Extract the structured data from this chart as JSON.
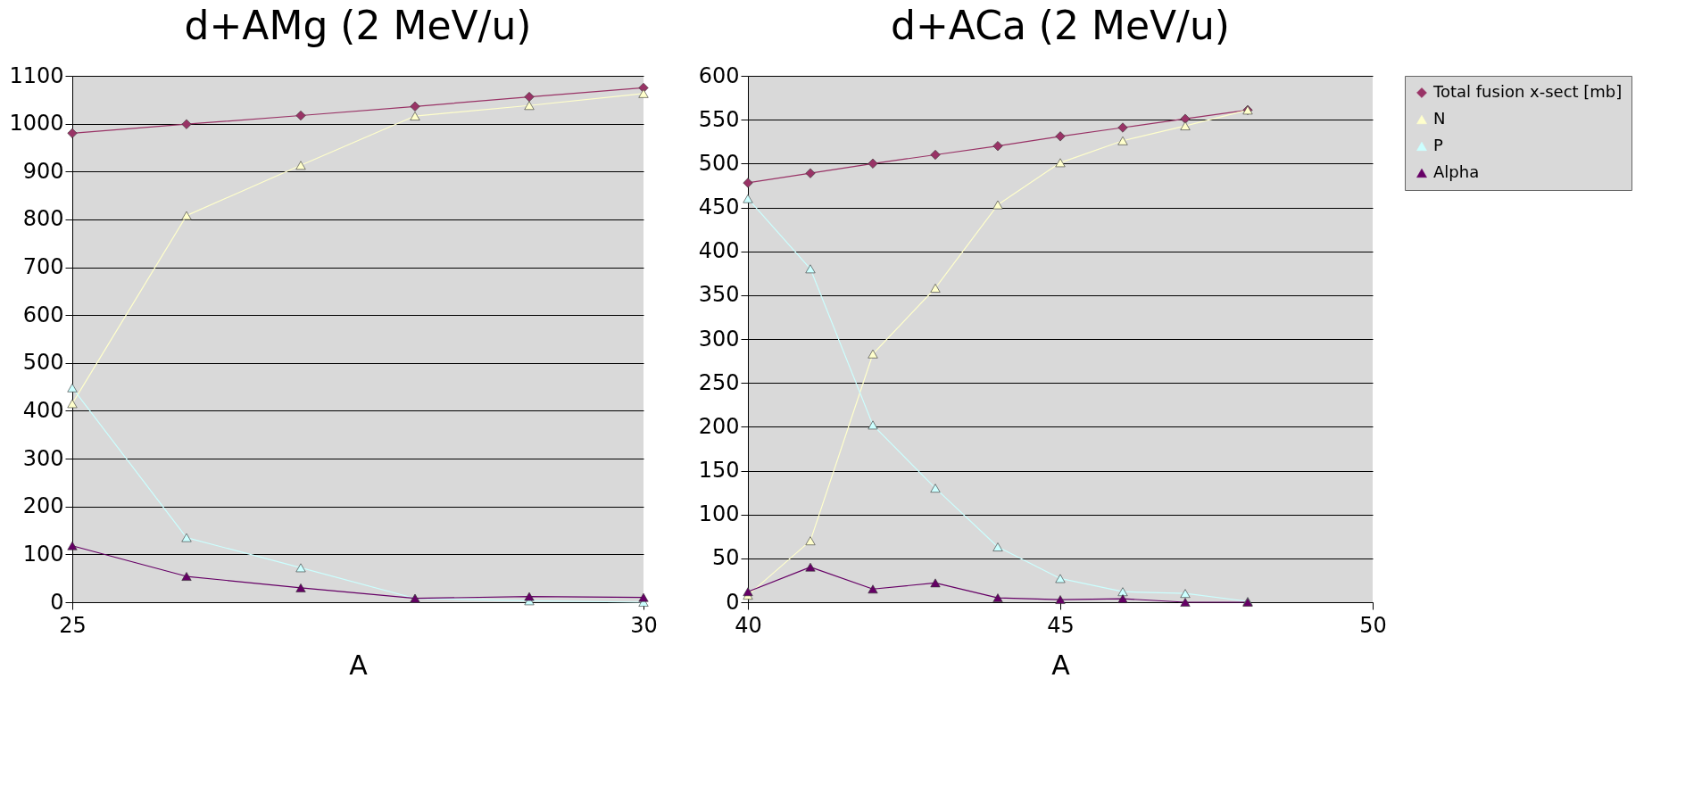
{
  "chart_data": [
    {
      "type": "line",
      "title": "d+AMg (2 MeV/u)",
      "xlabel": "A",
      "x": [
        25,
        26,
        27,
        28,
        29,
        30
      ],
      "xlim": [
        25,
        30
      ],
      "xticks": [
        25,
        30
      ],
      "ylim": [
        0,
        1100
      ],
      "yticks": [
        0,
        100,
        200,
        300,
        400,
        500,
        600,
        700,
        800,
        900,
        1000,
        1100
      ],
      "grid": "y",
      "legend": "right",
      "series": [
        {
          "name": "Total fusion x-sect [mb]",
          "color": "#993366",
          "marker": "diamond",
          "values": [
            980,
            999,
            1017,
            1036,
            1056,
            1075
          ]
        },
        {
          "name": "N",
          "color": "#ffffcc",
          "marker": "triangle",
          "values": [
            415,
            808,
            913,
            1016,
            1038,
            1063
          ]
        },
        {
          "name": "P",
          "color": "#ccffff",
          "marker": "triangle",
          "values": [
            448,
            135,
            72,
            8,
            3,
            0
          ]
        },
        {
          "name": "Alpha",
          "color": "#660066",
          "marker": "triangle",
          "values": [
            118,
            54,
            30,
            8,
            12,
            10
          ]
        }
      ]
    },
    {
      "type": "line",
      "title": "d+ACa (2 MeV/u)",
      "xlabel": "A",
      "x": [
        40,
        41,
        42,
        43,
        44,
        45,
        46,
        47,
        48
      ],
      "xlim": [
        40,
        50
      ],
      "xticks": [
        40,
        45,
        50
      ],
      "ylim": [
        0,
        600
      ],
      "yticks": [
        0,
        50,
        100,
        150,
        200,
        250,
        300,
        350,
        400,
        450,
        500,
        550,
        600
      ],
      "grid": "y",
      "legend": "right",
      "series": [
        {
          "name": "Total fusion x-sect [mb]",
          "color": "#993366",
          "marker": "diamond",
          "values": [
            478,
            489,
            500,
            510,
            520,
            531,
            541,
            551,
            561
          ]
        },
        {
          "name": "N",
          "color": "#ffffcc",
          "marker": "triangle",
          "values": [
            8,
            70,
            283,
            358,
            453,
            501,
            526,
            543,
            561
          ]
        },
        {
          "name": "P",
          "color": "#ccffff",
          "marker": "triangle",
          "values": [
            460,
            380,
            202,
            130,
            63,
            27,
            12,
            10,
            1
          ]
        },
        {
          "name": "Alpha",
          "color": "#660066",
          "marker": "triangle",
          "values": [
            12,
            40,
            15,
            22,
            5,
            3,
            4,
            0,
            0
          ]
        }
      ]
    }
  ]
}
